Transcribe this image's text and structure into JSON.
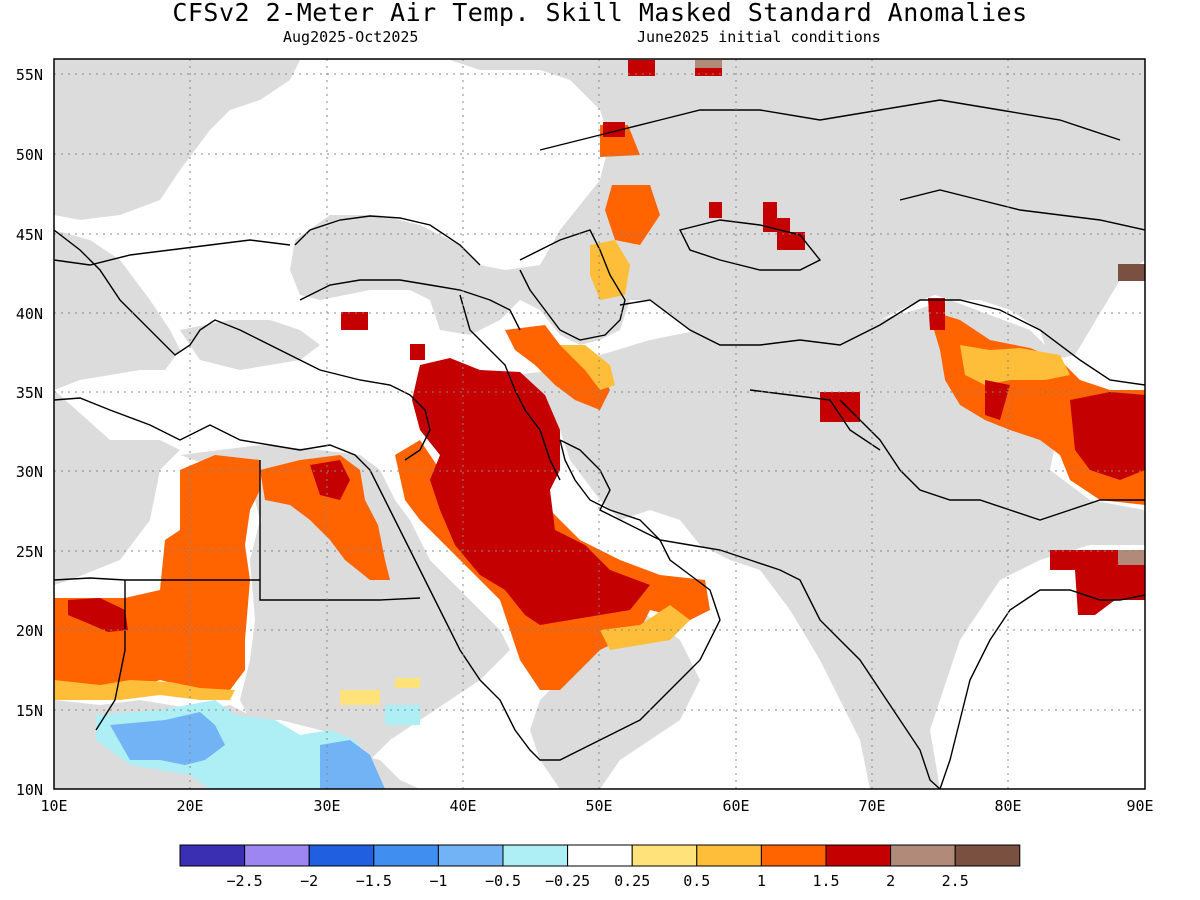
{
  "map": {
    "title": "CFSv2 2-Meter Air Temp. Skill Masked Standard Anomalies",
    "period": "Aug2025-Oct2025",
    "init": "June2025 initial conditions",
    "lat_labels": [
      "55N",
      "50N",
      "45N",
      "40N",
      "35N",
      "30N",
      "25N",
      "20N",
      "15N",
      "10N"
    ],
    "lon_labels": [
      "10E",
      "20E",
      "30E",
      "40E",
      "50E",
      "60E",
      "70E",
      "80E",
      "90E"
    ],
    "extent": {
      "lon": [
        10,
        90
      ],
      "lat": [
        10,
        56
      ]
    }
  },
  "colors": {
    "land_masked": "#dcdcdc",
    "ocean": "#ffffff",
    "bins": [
      "#3a2fb3",
      "#9e86f2",
      "#2060e0",
      "#3f8ef0",
      "#72b3f6",
      "#aeeef5",
      "#ffffff",
      "#ffe27a",
      "#ffbe3a",
      "#ff6400",
      "#c40000",
      "#b28a7a",
      "#7a5040"
    ]
  },
  "legend": {
    "labels": [
      "−2.5",
      "−2",
      "−1.5",
      "−1",
      "−0.5",
      "−0.25",
      "0.25",
      "0.5",
      "1",
      "1.5",
      "2",
      "2.5"
    ]
  }
}
